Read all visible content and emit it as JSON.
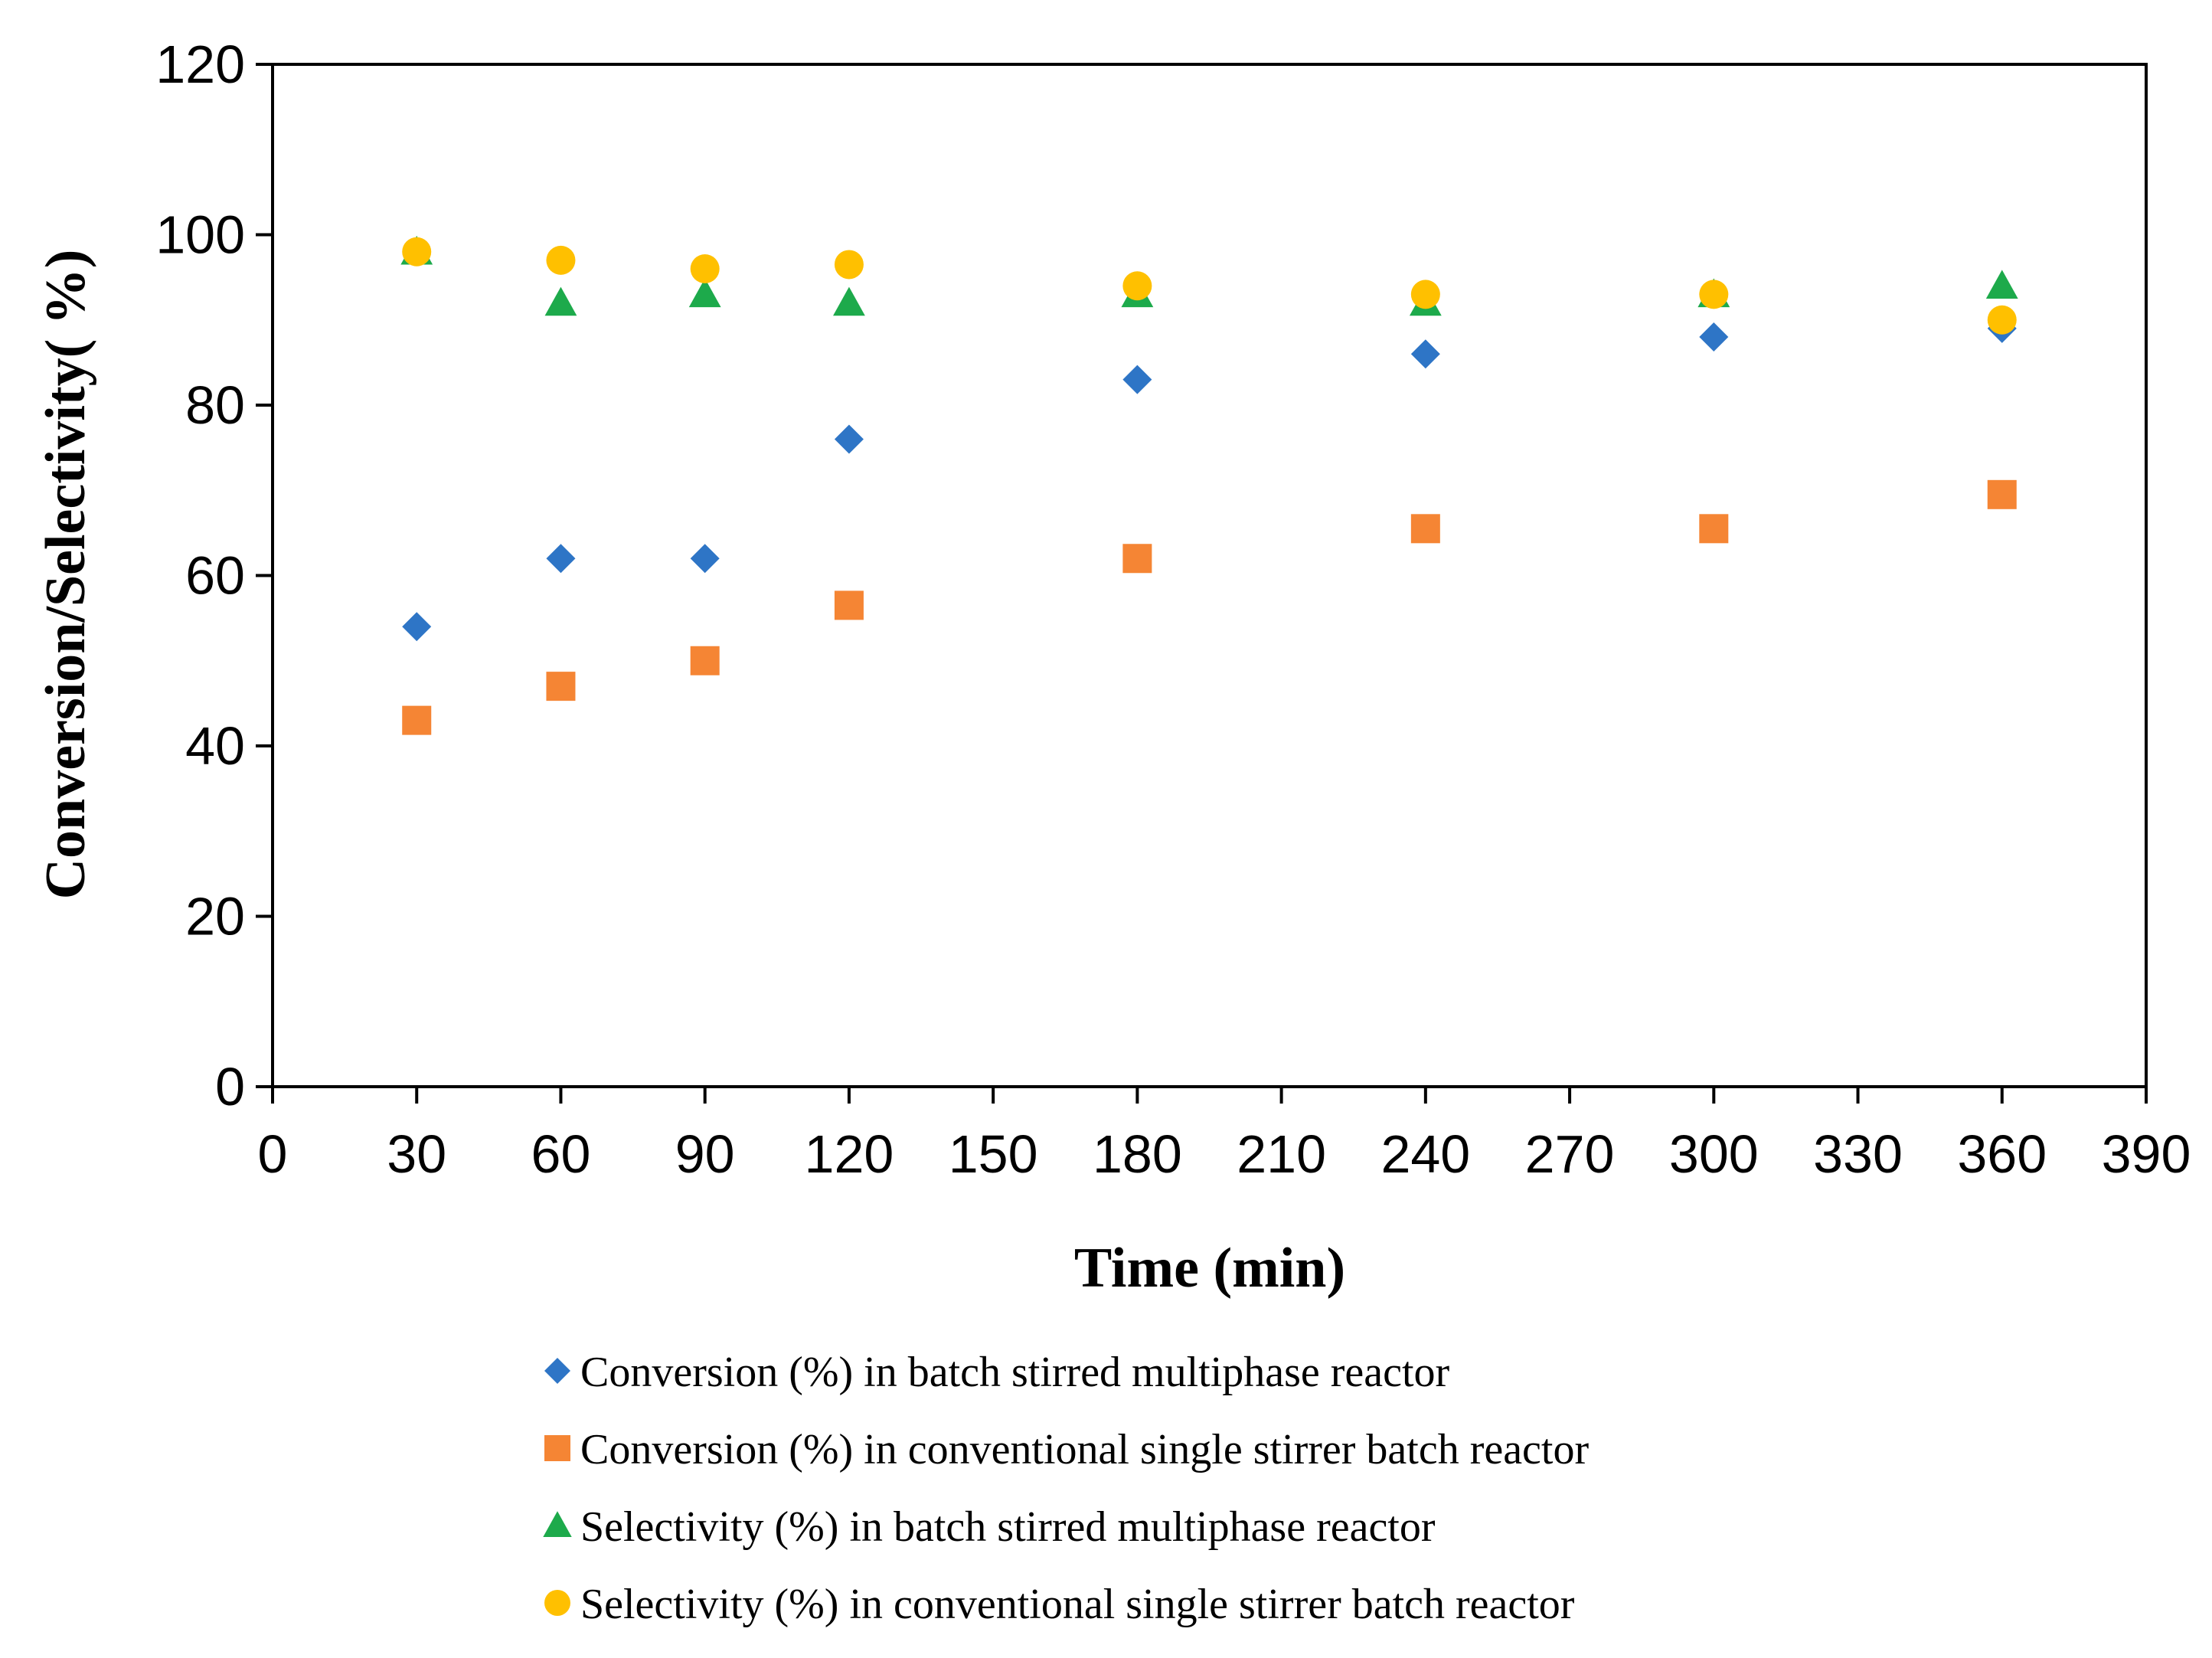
{
  "chart_data": {
    "type": "scatter",
    "title": "",
    "xlabel": "Time (min)",
    "ylabel": "Conversion/Selectivity( %)",
    "xlim": [
      0,
      390
    ],
    "ylim": [
      0,
      120
    ],
    "xticks": [
      0,
      30,
      60,
      90,
      120,
      150,
      180,
      210,
      240,
      270,
      300,
      330,
      360,
      390
    ],
    "yticks": [
      0,
      20,
      40,
      60,
      80,
      100,
      120
    ],
    "grid": false,
    "legend_position": "bottom",
    "series": [
      {
        "name": "Conversion (%) in batch stirred multiphase reactor",
        "marker": "diamond",
        "color": "#2E75C6",
        "x": [
          30,
          60,
          90,
          120,
          180,
          240,
          300,
          360
        ],
        "y": [
          54,
          62,
          62,
          76,
          83,
          86,
          88,
          89
        ]
      },
      {
        "name": "Conversion (%) in conventional single stirrer batch reactor",
        "marker": "square",
        "color": "#F58534",
        "x": [
          30,
          60,
          90,
          120,
          180,
          240,
          300,
          360
        ],
        "y": [
          43,
          47,
          50,
          56.5,
          62,
          65.5,
          65.5,
          69.5
        ]
      },
      {
        "name": "Selectivity (%) in batch stirred multiphase reactor",
        "marker": "triangle",
        "color": "#1DAA4B",
        "x": [
          30,
          60,
          90,
          120,
          180,
          240,
          300,
          360
        ],
        "y": [
          98,
          92,
          93,
          92,
          93,
          92,
          93,
          94
        ]
      },
      {
        "name": "Selectivity (%) in conventional single stirrer batch reactor",
        "marker": "circle",
        "color": "#FFC000",
        "x": [
          30,
          60,
          90,
          120,
          180,
          240,
          300,
          360
        ],
        "y": [
          98,
          97,
          96,
          96.5,
          94,
          93,
          93,
          90
        ]
      }
    ]
  }
}
